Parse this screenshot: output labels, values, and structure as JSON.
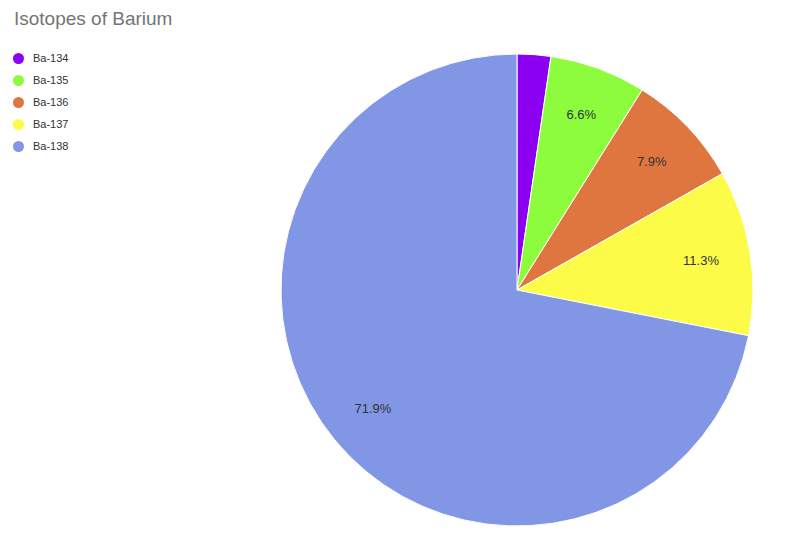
{
  "chart_data": {
    "type": "pie",
    "title": "Isotopes of Barium",
    "categories": [
      "Ba-134",
      "Ba-135",
      "Ba-136",
      "Ba-137",
      "Ba-138"
    ],
    "values": [
      2.3,
      6.6,
      7.9,
      11.3,
      71.9
    ],
    "value_labels": [
      null,
      "6.6%",
      "7.9%",
      "11.3%",
      "71.9%"
    ],
    "colors": [
      "#8c00f2",
      "#8cfc3c",
      "#df7640",
      "#fcfc48",
      "#8296e6"
    ],
    "data_labels": true,
    "legend": "top-left"
  }
}
